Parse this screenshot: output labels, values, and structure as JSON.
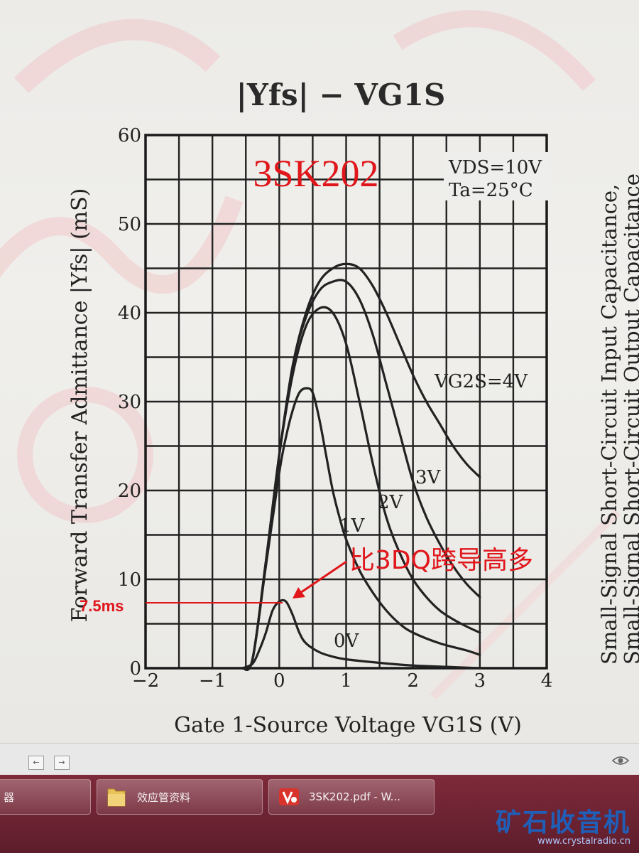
{
  "chart_data": {
    "type": "line",
    "title": "|Yfs| − VG1S",
    "chip_label": "3SK202",
    "conditions": [
      "VDS=10V",
      "Ta=25°C"
    ],
    "xlabel": "Gate 1-Source Voltage VG1S (V)",
    "ylabel": "Forward Transfer Admittance |Yfs| (mS)",
    "xlim": [
      -2,
      4
    ],
    "ylim": [
      0,
      60
    ],
    "x_ticks": [
      "−2",
      "−1",
      "0",
      "1",
      "2",
      "3",
      "4"
    ],
    "y_ticks": [
      "0",
      "10",
      "20",
      "30",
      "40",
      "50",
      "60"
    ],
    "grid": true,
    "series": [
      {
        "name": "VG2S=4V",
        "x": [
          -0.55,
          -0.4,
          -0.2,
          0,
          0.2,
          0.4,
          0.6,
          0.8,
          1.0,
          1.2,
          1.4,
          1.6,
          1.8,
          2.0,
          2.2,
          2.4,
          2.6,
          2.8,
          3.0
        ],
        "y": [
          0,
          1,
          12,
          24,
          34,
          40,
          43.5,
          45,
          45.5,
          45,
          43,
          40,
          36.5,
          33,
          30,
          27.5,
          25,
          23,
          21.5
        ]
      },
      {
        "name": "3V",
        "x": [
          -0.55,
          -0.4,
          -0.2,
          0,
          0.2,
          0.4,
          0.6,
          0.8,
          1.0,
          1.2,
          1.4,
          1.6,
          1.8,
          2.0,
          2.2,
          2.4,
          2.6,
          2.8,
          3.0
        ],
        "y": [
          0,
          1,
          12,
          24,
          34,
          39.5,
          42.5,
          43.5,
          43.5,
          41.5,
          37.5,
          32,
          26.5,
          21,
          17,
          14,
          11.5,
          9.5,
          8
        ]
      },
      {
        "name": "2V",
        "x": [
          -0.55,
          -0.4,
          -0.2,
          0,
          0.2,
          0.4,
          0.6,
          0.8,
          1.0,
          1.2,
          1.4,
          1.6,
          1.8,
          2.0,
          2.2,
          2.4,
          2.6,
          2.8,
          3.0
        ],
        "y": [
          0,
          1,
          12,
          24,
          33,
          38.5,
          40.5,
          40,
          36.5,
          30,
          23,
          17,
          13,
          10,
          8,
          6.5,
          5.5,
          4.7,
          4
        ]
      },
      {
        "name": "1V",
        "x": [
          -0.55,
          -0.4,
          -0.2,
          0,
          0.1,
          0.2,
          0.3,
          0.4,
          0.5,
          0.6,
          0.7,
          0.8,
          0.9,
          1.0,
          1.2,
          1.4,
          1.6,
          1.8,
          2.0,
          2.4,
          2.8,
          3.0
        ],
        "y": [
          0,
          1,
          11.5,
          22,
          26,
          29,
          31,
          31.5,
          31,
          28,
          24,
          20,
          17,
          14.5,
          11,
          8.5,
          6.5,
          5,
          4,
          2.8,
          2,
          1.5
        ]
      },
      {
        "name": "0V",
        "x": [
          -0.55,
          -0.4,
          -0.3,
          -0.2,
          -0.1,
          0,
          0.1,
          0.2,
          0.3,
          0.4,
          0.6,
          0.8,
          1.0,
          1.5,
          2.0,
          2.5,
          3.0
        ],
        "y": [
          0,
          0.5,
          2,
          4,
          6.5,
          7.5,
          7.5,
          6,
          4,
          2.8,
          1.8,
          1.3,
          1.0,
          0.6,
          0.3,
          0.15,
          0
        ]
      }
    ],
    "curve_labels": [
      "VG2S=4V",
      "3V",
      "2V",
      "1V",
      "0V"
    ],
    "annotation_text": "比3DQ跨导高多",
    "annotation_value": "7.5ms",
    "side_text": [
      "Small-Signal Short-Circuit Input Capacitance,",
      "Small-Signal Short-Circuit Output Capacitance"
    ]
  },
  "viewer": {
    "prev_label": "←",
    "next_label": "→"
  },
  "taskbar": {
    "items": [
      {
        "label": "器"
      },
      {
        "label": "效应管资料"
      },
      {
        "label": "3SK202.pdf - W..."
      }
    ],
    "brand_main": "矿石收音机",
    "brand_url": "www.crystalradio.cn"
  },
  "colors": {
    "annotation": "#e0161b",
    "watermark": "#f0c9c9",
    "taskbar": "#6e2433",
    "brand": "#1f5fb8"
  }
}
